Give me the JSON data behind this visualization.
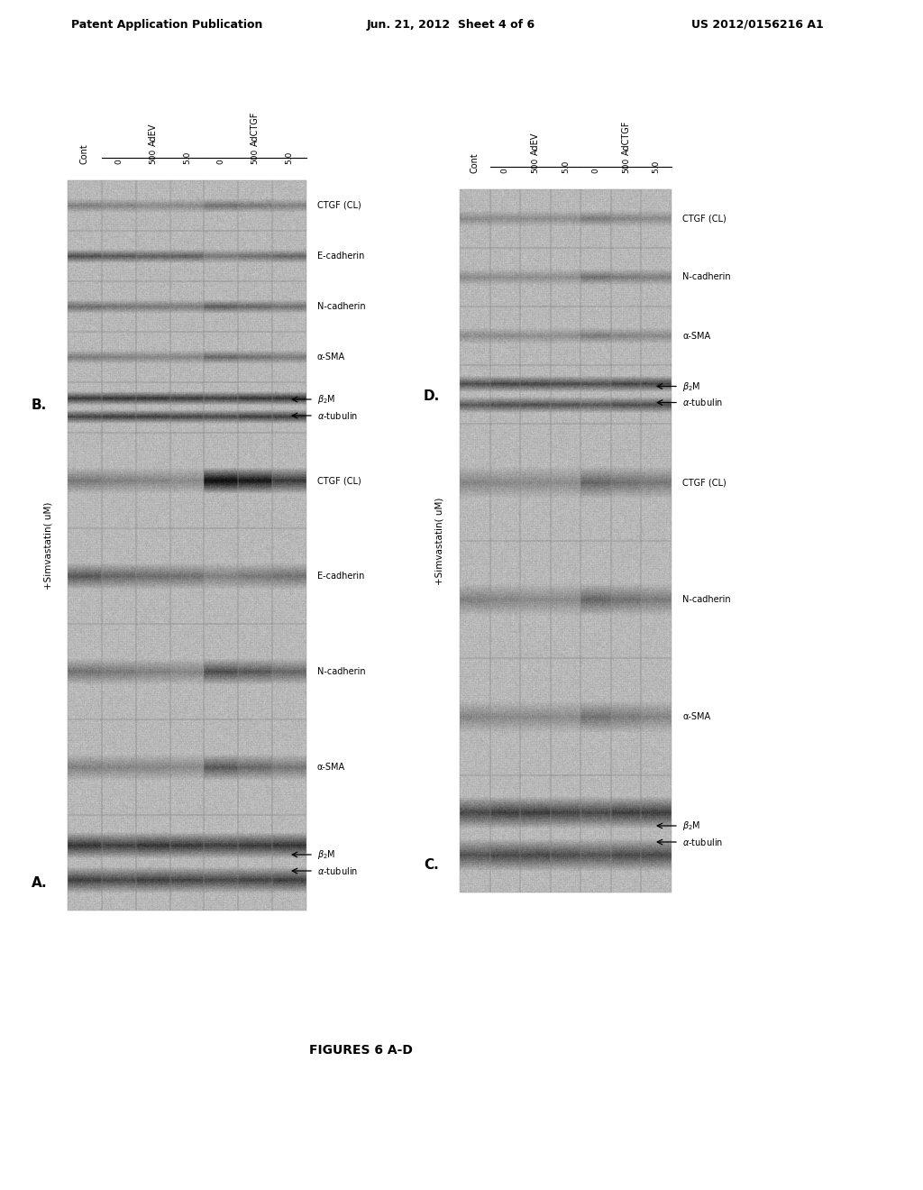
{
  "header_left": "Patent Application Publication",
  "header_center": "Jun. 21, 2012  Sheet 4 of 6",
  "header_right": "US 2012/0156216 A1",
  "footer_label": "FIGURES 6 A-D",
  "panel_A_label": "A.",
  "panel_B_label": "B.",
  "panel_C_label": "C.",
  "panel_D_label": "D.",
  "simvastatin_label": "+Simvastatin( uM)",
  "row_labels_AB": [
    "CTGF (CL)",
    "E-cadherin",
    "N-cadherin",
    "α-SMA",
    "β₂M\nα-tubulin"
  ],
  "row_labels_CD": [
    "CTGF (CL)",
    "N-cadherin",
    "α-SMA",
    "β₂M\nα-tubulin"
  ],
  "col_labels": [
    "Cont",
    "0",
    "500",
    "5.0",
    "0",
    "500",
    "5.0"
  ],
  "group_labels": [
    "AdEV",
    "AdCTGF"
  ],
  "bg_color": "#ffffff"
}
